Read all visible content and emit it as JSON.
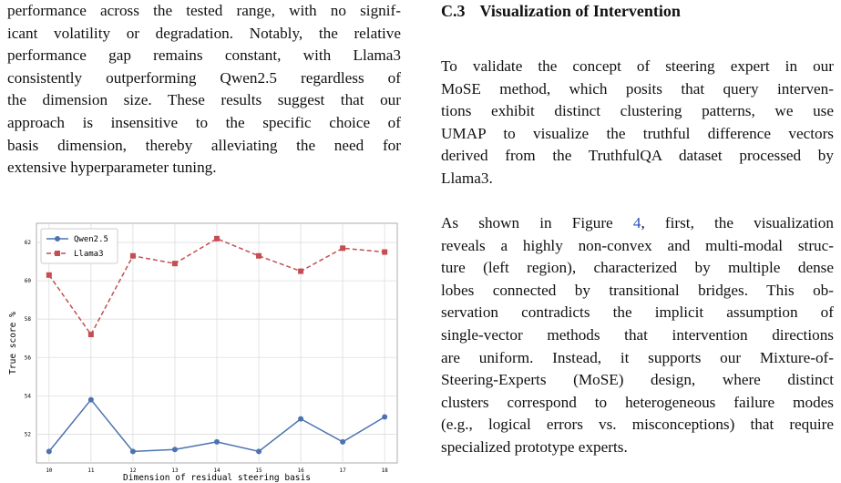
{
  "left_column": {
    "lines": [
      "performance across the tested range, with no signif-",
      "icant volatility or degradation. Notably, the relative",
      "performance gap remains constant, with Llama3",
      "consistently outperforming Qwen2.5 regardless of",
      "the dimension size. These results suggest that our",
      "approach is insensitive to the specific choice of",
      "basis dimension, thereby alleviating the need for",
      "extensive hyperparameter tuning."
    ]
  },
  "chart_data": {
    "type": "line",
    "x": [
      10,
      11,
      12,
      13,
      14,
      15,
      16,
      17,
      18
    ],
    "series": [
      {
        "name": "Qwen2.5",
        "color": "#4c72b0",
        "marker": "circle",
        "dash": false,
        "values": [
          51.1,
          53.8,
          51.1,
          51.2,
          51.6,
          51.1,
          52.8,
          51.6,
          52.9
        ]
      },
      {
        "name": "Llama3",
        "color": "#c44e52",
        "marker": "square",
        "dash": true,
        "values": [
          60.3,
          57.2,
          61.3,
          60.9,
          62.2,
          61.3,
          60.5,
          61.7,
          61.5
        ]
      }
    ],
    "xlabel": "Dimension of residual steering basis",
    "ylabel": "True score %",
    "xlim": [
      9.7,
      18.3
    ],
    "xticks": [
      10,
      11,
      12,
      13,
      14,
      15,
      16,
      17,
      18
    ],
    "ylim": [
      50.5,
      63
    ],
    "yticks": [
      52,
      54,
      56,
      58,
      60,
      62
    ],
    "grid": true,
    "legend": "upper left"
  },
  "right_column": {
    "section_number": "C.3",
    "section_title": "Visualization of Intervention",
    "paragraphs": [
      {
        "lines": [
          "To validate the concept of steering expert in our",
          "MoSE method, which posits that query interven-",
          "tions exhibit distinct clustering patterns, we use",
          "UMAP to visualize the truthful difference vectors",
          "derived from the TruthfulQA dataset processed by",
          "Llama3."
        ]
      },
      {
        "lines": [
          [
            "As shown in Figure ",
            "4",
            ", first, the visualization"
          ],
          "reveals a highly non-convex and multi-modal struc-",
          "ture (left region), characterized by multiple dense",
          "lobes connected by transitional bridges. This ob-",
          "servation contradicts the implicit assumption of",
          "single-vector methods that intervention directions",
          "are uniform. Instead, it supports our Mixture-of-",
          "Steering-Experts (MoSE) design, where distinct",
          "clusters correspond to heterogeneous failure modes",
          "(e.g., logical errors vs. misconceptions) that require",
          "specialized prototype experts."
        ]
      }
    ]
  }
}
